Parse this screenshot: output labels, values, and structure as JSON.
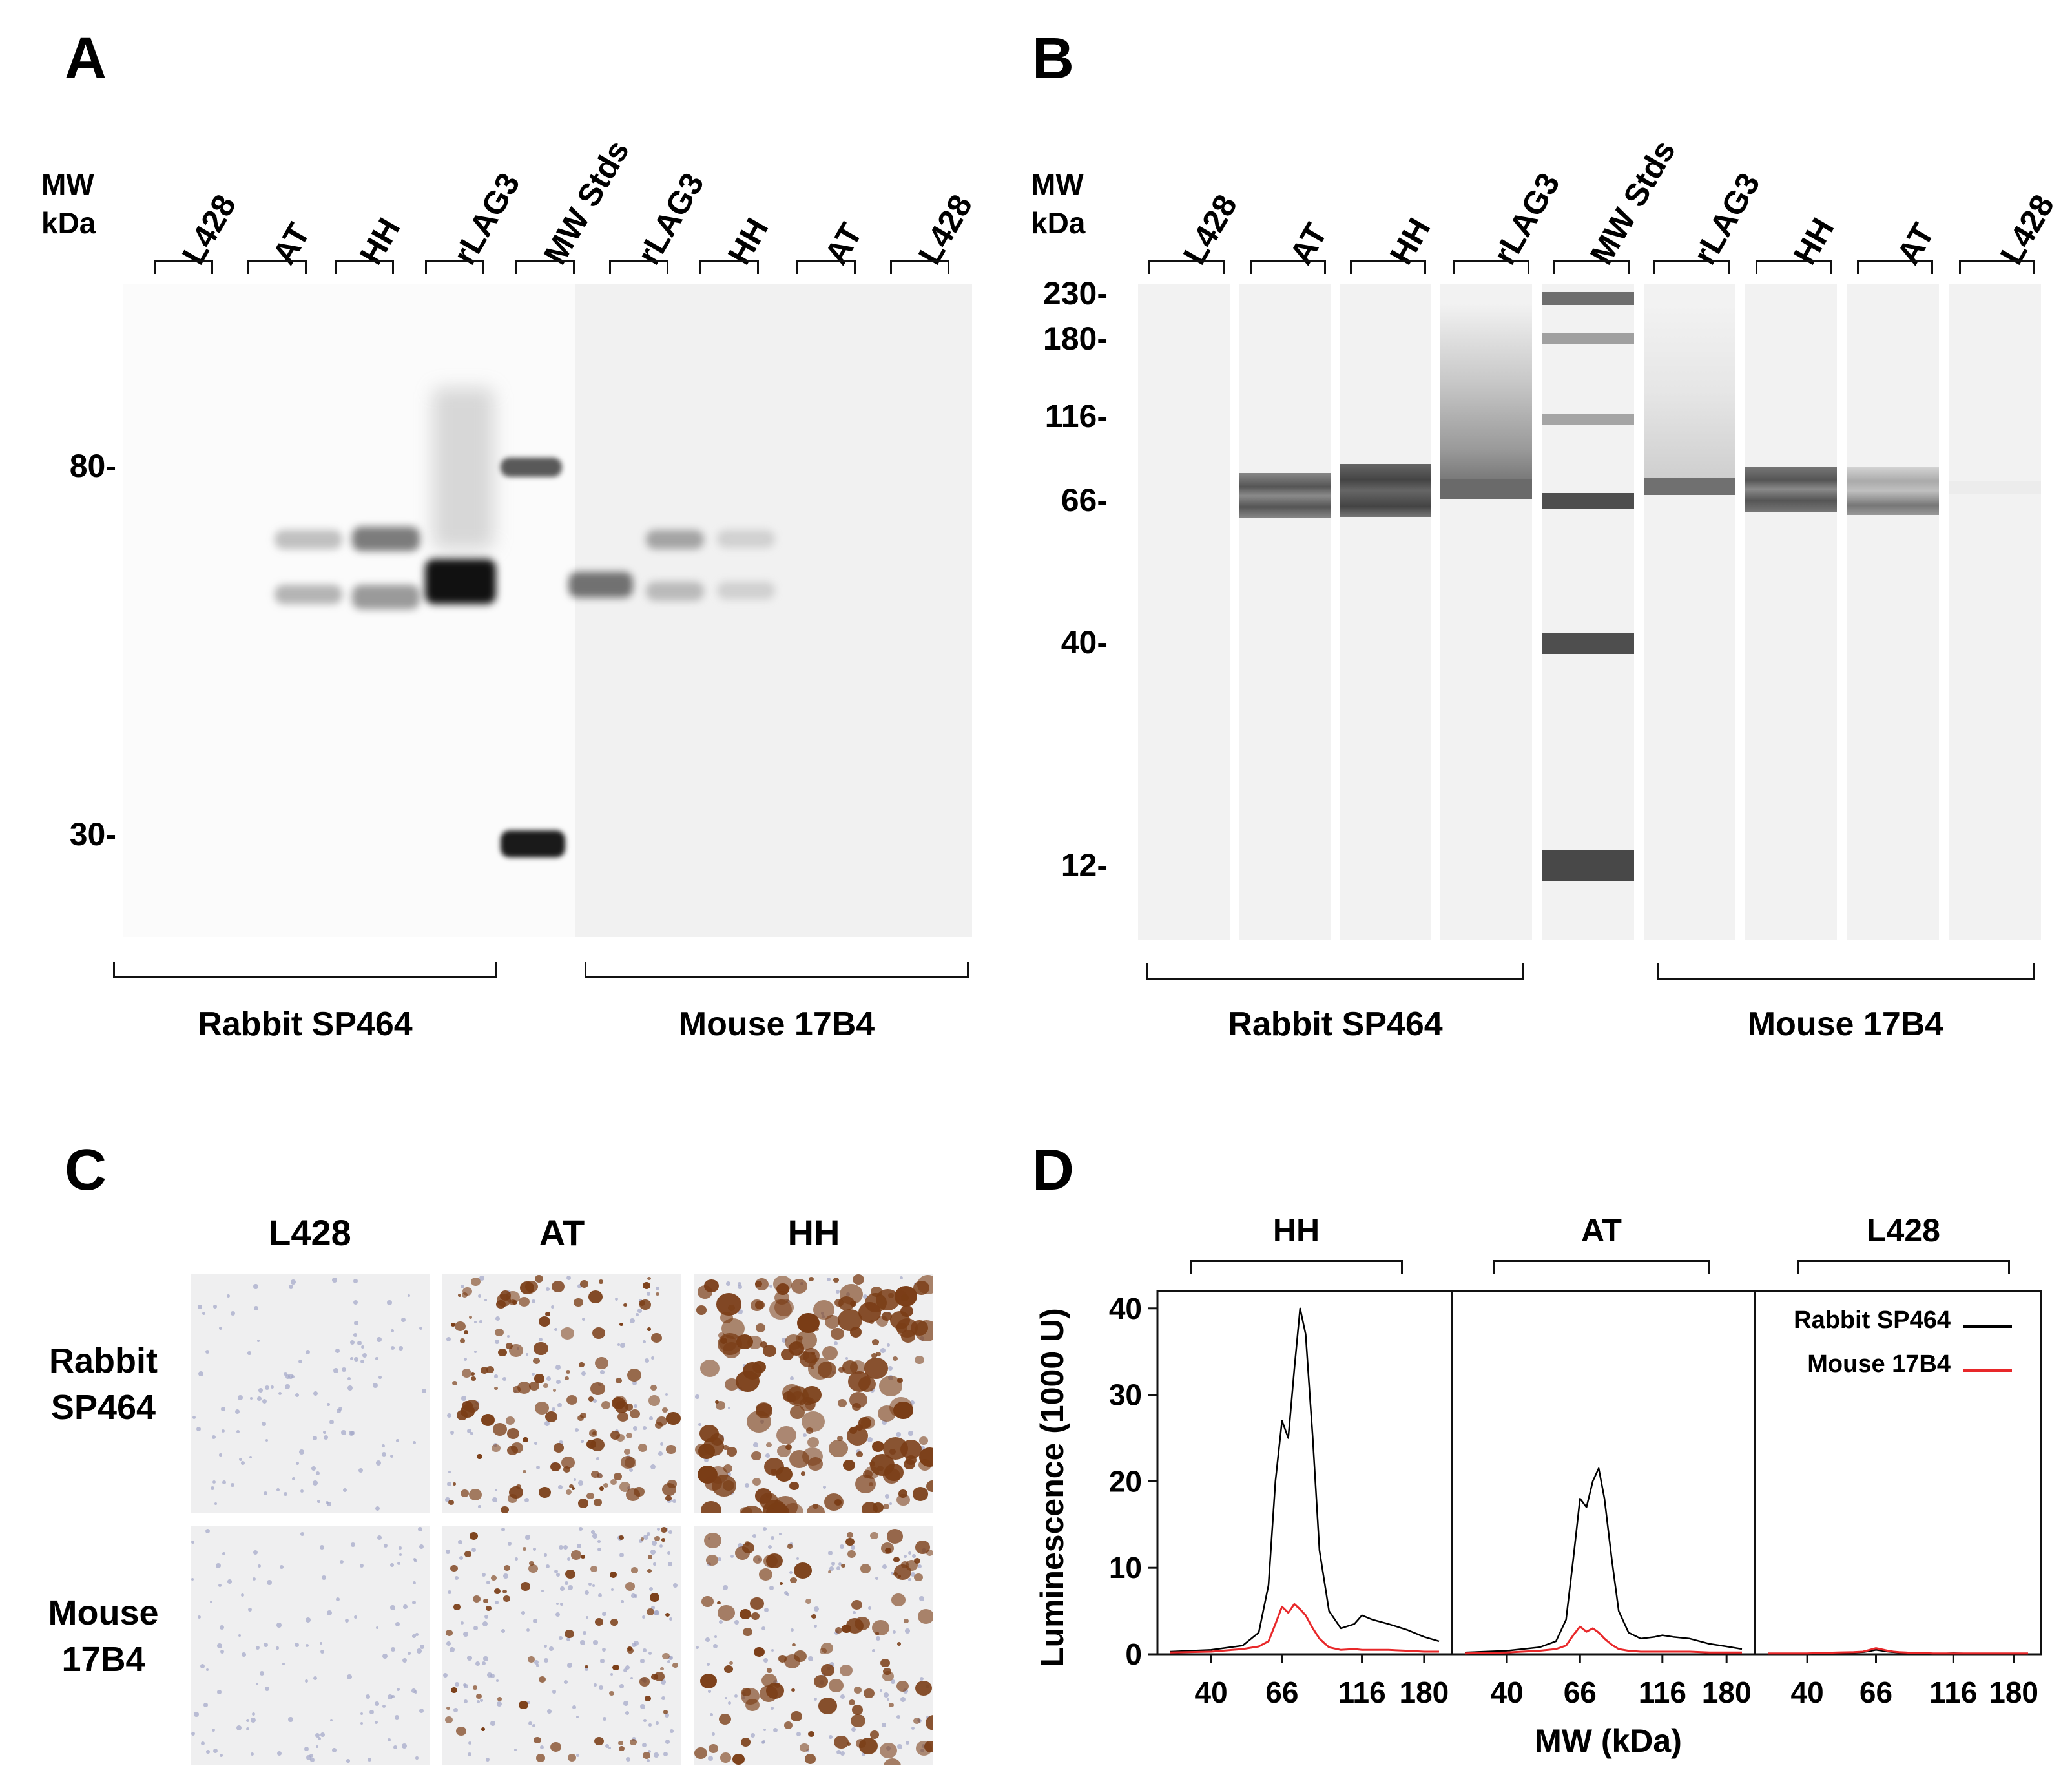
{
  "panel_a": {
    "letter": "A",
    "mw_header": [
      "MW",
      "kDa"
    ],
    "lanes": [
      "L428",
      "AT",
      "HH",
      "rLAG3",
      "MW Stds",
      "rLAG3",
      "HH",
      "AT",
      "L428"
    ],
    "markers": [
      "80-",
      "30-"
    ],
    "groups": [
      "Rabbit SP464",
      "Mouse 17B4"
    ]
  },
  "panel_b": {
    "letter": "B",
    "mw_header": [
      "MW",
      "kDa"
    ],
    "lanes": [
      "L428",
      "AT",
      "HH",
      "rLAG3",
      "MW Stds",
      "rLAG3",
      "HH",
      "AT",
      "L428"
    ],
    "markers": [
      "230-",
      "180-",
      "116-",
      "66-",
      "40-",
      "12-"
    ],
    "groups": [
      "Rabbit SP464",
      "Mouse 17B4"
    ]
  },
  "panel_c": {
    "letter": "C",
    "columns": [
      "L428",
      "AT",
      "HH"
    ],
    "rows": [
      {
        "line1": "Rabbit",
        "line2": "SP464"
      },
      {
        "line1": "Mouse",
        "line2": "17B4"
      }
    ],
    "colors": {
      "stain": "#7a3d16",
      "background": "#efeff0",
      "nuclei": "#a3a6c8"
    }
  },
  "panel_d": {
    "letter": "D",
    "subpanels": [
      "HH",
      "AT",
      "L428"
    ],
    "y_ticks": [
      "0",
      "10",
      "20",
      "30",
      "40"
    ],
    "x_ticks": [
      "40",
      "66",
      "116",
      "180"
    ],
    "ylabel": "Luminescence (1000 U)",
    "xlabel": "MW (kDa)",
    "legend": {
      "rabbit": "Rabbit SP464",
      "mouse": "Mouse 17B4"
    },
    "colors": {
      "rabbit": "#000000",
      "mouse": "#e8282a"
    }
  },
  "chart_data": {
    "type": "line",
    "title": "",
    "xlabel": "MW (kDa)",
    "ylabel": "Luminescence (1000 U)",
    "ylim": [
      0,
      42
    ],
    "x_ticks": [
      40,
      66,
      116,
      180
    ],
    "panels": [
      {
        "name": "HH",
        "x": [
          30,
          40,
          50,
          56,
          60,
          63,
          66,
          69,
          72,
          75,
          78,
          82,
          86,
          92,
          100,
          110,
          116,
          125,
          140,
          160,
          180,
          200
        ],
        "series": [
          {
            "name": "Rabbit SP464",
            "values": [
              0.3,
              0.5,
              1.0,
              2.5,
              8,
              20,
              27,
              25,
              33,
              40,
              37,
              25,
              12,
              5,
              3,
              3.5,
              4.5,
              4,
              3.5,
              2.8,
              2,
              1.5
            ]
          },
          {
            "name": "Mouse 17B4",
            "values": [
              0.2,
              0.3,
              0.6,
              0.9,
              1.5,
              3.5,
              5.5,
              4.8,
              5.8,
              5.2,
              4.5,
              3,
              1.8,
              0.8,
              0.5,
              0.6,
              0.5,
              0.5,
              0.5,
              0.4,
              0.3,
              0.3
            ]
          }
        ]
      },
      {
        "name": "AT",
        "x": [
          30,
          40,
          50,
          56,
          60,
          63,
          66,
          69,
          72,
          75,
          78,
          82,
          86,
          92,
          100,
          110,
          116,
          125,
          140,
          160,
          180,
          200
        ],
        "series": [
          {
            "name": "Rabbit SP464",
            "values": [
              0.2,
              0.4,
              0.8,
              1.5,
              4,
              11,
              18,
              17,
              20,
              21.5,
              18,
              11,
              5,
              2.5,
              1.8,
              2,
              2.2,
              2,
              1.8,
              1.2,
              0.9,
              0.6
            ]
          },
          {
            "name": "Mouse 17B4",
            "values": [
              0.1,
              0.2,
              0.4,
              0.6,
              1.0,
              2.2,
              3.2,
              2.6,
              3.0,
              2.5,
              1.8,
              1.1,
              0.6,
              0.4,
              0.3,
              0.3,
              0.3,
              0.3,
              0.3,
              0.2,
              0.2,
              0.2
            ]
          }
        ]
      },
      {
        "name": "L428",
        "x": [
          30,
          40,
          50,
          56,
          60,
          63,
          66,
          69,
          72,
          75,
          78,
          82,
          86,
          92,
          100,
          110,
          116,
          125,
          140,
          160,
          180,
          200
        ],
        "series": [
          {
            "name": "Rabbit SP464",
            "values": [
              0.1,
              0.1,
              0.15,
              0.2,
              0.25,
              0.35,
              0.5,
              0.4,
              0.3,
              0.25,
              0.2,
              0.2,
              0.15,
              0.15,
              0.1,
              0.1,
              0.12,
              0.1,
              0.1,
              0.1,
              0.1,
              0.1
            ]
          },
          {
            "name": "Mouse 17B4",
            "values": [
              0.1,
              0.1,
              0.2,
              0.25,
              0.3,
              0.5,
              0.7,
              0.55,
              0.4,
              0.3,
              0.25,
              0.2,
              0.15,
              0.15,
              0.1,
              0.1,
              0.1,
              0.1,
              0.1,
              0.1,
              0.1,
              0.1
            ]
          }
        ]
      }
    ]
  }
}
